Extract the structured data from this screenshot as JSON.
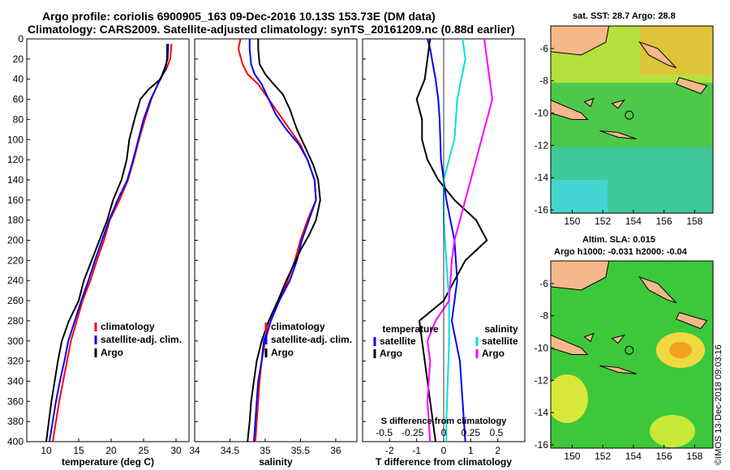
{
  "title_line1": "Argo profile: coriolis 6900905_163 09-Dec-2016 10.13S 153.73E (DM data)",
  "title_line2": "Climatology: CARS2009. Satellite-adjusted climatology: synTS_20161209.nc (0.88d earlier)",
  "map_top_title": "sat. SST: 28.7 Argo: 28.8",
  "map_bottom_title1": "Altim. SLA: 0.015",
  "map_bottom_title2": "Argo h1000: -0.031 h2000: -0.04",
  "stamp": "©IMOS 13-Dec-2018 09:03:16",
  "colors": {
    "clim": "#ff0000",
    "sat": "#0000ff",
    "argo": "#000000",
    "sat_s": "#00e0e0",
    "argo_s": "#ff00ff",
    "land": "#f4b88a"
  },
  "chart_data": [
    {
      "type": "line",
      "name": "temperature",
      "xlabel": "temperature (deg C)",
      "ylabel": "",
      "xlim": [
        7,
        32
      ],
      "ylim": [
        400,
        0
      ],
      "xticks": [
        10,
        15,
        20,
        25,
        30
      ],
      "yticks": [
        0,
        20,
        40,
        60,
        80,
        100,
        120,
        140,
        160,
        180,
        200,
        220,
        240,
        260,
        280,
        300,
        320,
        340,
        360,
        380,
        400
      ],
      "legend": [
        "climatology",
        "satellite-adj. clim.",
        "Argo"
      ],
      "series": [
        {
          "name": "climatology",
          "color": "clim",
          "points": [
            [
              29.3,
              5
            ],
            [
              29.1,
              20
            ],
            [
              28.5,
              30
            ],
            [
              27.5,
              40
            ],
            [
              26.2,
              60
            ],
            [
              25.2,
              80
            ],
            [
              24.3,
              100
            ],
            [
              23.5,
              120
            ],
            [
              22.6,
              140
            ],
            [
              21.3,
              160
            ],
            [
              19.8,
              180
            ],
            [
              18.9,
              200
            ],
            [
              17.8,
              220
            ],
            [
              16.8,
              240
            ],
            [
              15.6,
              260
            ],
            [
              14.7,
              280
            ],
            [
              13.8,
              300
            ],
            [
              13.2,
              320
            ],
            [
              12.6,
              340
            ],
            [
              12.0,
              360
            ],
            [
              11.5,
              380
            ],
            [
              11.0,
              400
            ]
          ]
        },
        {
          "name": "satellite-adj. clim.",
          "color": "sat",
          "points": [
            [
              28.6,
              5
            ],
            [
              28.6,
              20
            ],
            [
              28.4,
              30
            ],
            [
              27.6,
              40
            ],
            [
              26.1,
              60
            ],
            [
              25.0,
              80
            ],
            [
              24.2,
              100
            ],
            [
              23.4,
              120
            ],
            [
              22.5,
              140
            ],
            [
              21.0,
              160
            ],
            [
              19.7,
              180
            ],
            [
              18.6,
              200
            ],
            [
              17.5,
              220
            ],
            [
              16.5,
              240
            ],
            [
              15.4,
              260
            ],
            [
              14.4,
              280
            ],
            [
              13.4,
              300
            ],
            [
              12.8,
              320
            ],
            [
              12.1,
              340
            ],
            [
              11.5,
              360
            ],
            [
              11.0,
              380
            ],
            [
              10.5,
              400
            ]
          ]
        },
        {
          "name": "Argo",
          "color": "argo",
          "points": [
            [
              28.8,
              5
            ],
            [
              28.7,
              20
            ],
            [
              28.2,
              30
            ],
            [
              27.6,
              40
            ],
            [
              25.8,
              50
            ],
            [
              24.5,
              60
            ],
            [
              23.6,
              80
            ],
            [
              22.8,
              100
            ],
            [
              22.4,
              120
            ],
            [
              21.6,
              140
            ],
            [
              20.3,
              160
            ],
            [
              19.4,
              180
            ],
            [
              18.2,
              200
            ],
            [
              17.0,
              220
            ],
            [
              15.8,
              240
            ],
            [
              15.0,
              260
            ],
            [
              13.5,
              280
            ],
            [
              12.4,
              300
            ],
            [
              11.8,
              320
            ],
            [
              11.3,
              340
            ],
            [
              10.8,
              360
            ],
            [
              10.4,
              380
            ],
            [
              10.0,
              400
            ]
          ]
        }
      ]
    },
    {
      "type": "line",
      "name": "salinity",
      "xlabel": "salinity",
      "ylabel": "",
      "xlim": [
        34,
        36.3
      ],
      "ylim": [
        400,
        0
      ],
      "xticks": [
        34,
        34.5,
        35,
        35.5,
        36
      ],
      "legend": [
        "climatology",
        "satellite-adj. clim.",
        "Argo"
      ],
      "series": [
        {
          "name": "climatology",
          "color": "clim",
          "points": [
            [
              34.65,
              0
            ],
            [
              34.62,
              10
            ],
            [
              34.68,
              25
            ],
            [
              34.75,
              35
            ],
            [
              34.9,
              45
            ],
            [
              35.05,
              60
            ],
            [
              35.2,
              75
            ],
            [
              35.35,
              90
            ],
            [
              35.5,
              105
            ],
            [
              35.6,
              120
            ],
            [
              35.7,
              140
            ],
            [
              35.72,
              160
            ],
            [
              35.6,
              180
            ],
            [
              35.5,
              200
            ],
            [
              35.42,
              220
            ],
            [
              35.32,
              240
            ],
            [
              35.2,
              260
            ],
            [
              35.08,
              280
            ],
            [
              35.0,
              300
            ],
            [
              34.95,
              320
            ],
            [
              34.92,
              340
            ],
            [
              34.9,
              360
            ],
            [
              34.88,
              380
            ],
            [
              34.86,
              400
            ]
          ]
        },
        {
          "name": "satellite-adj. clim.",
          "color": "sat",
          "points": [
            [
              34.78,
              0
            ],
            [
              34.78,
              10
            ],
            [
              34.8,
              25
            ],
            [
              34.85,
              35
            ],
            [
              34.95,
              45
            ],
            [
              35.05,
              60
            ],
            [
              35.15,
              75
            ],
            [
              35.3,
              90
            ],
            [
              35.48,
              105
            ],
            [
              35.6,
              120
            ],
            [
              35.7,
              140
            ],
            [
              35.72,
              160
            ],
            [
              35.62,
              180
            ],
            [
              35.52,
              200
            ],
            [
              35.45,
              220
            ],
            [
              35.35,
              240
            ],
            [
              35.2,
              260
            ],
            [
              35.08,
              280
            ],
            [
              34.98,
              300
            ],
            [
              34.95,
              320
            ],
            [
              34.9,
              340
            ],
            [
              34.88,
              360
            ],
            [
              34.86,
              380
            ],
            [
              34.84,
              400
            ]
          ]
        },
        {
          "name": "Argo",
          "color": "argo",
          "points": [
            [
              34.9,
              0
            ],
            [
              34.9,
              10
            ],
            [
              34.92,
              25
            ],
            [
              35.0,
              35
            ],
            [
              35.12,
              45
            ],
            [
              35.25,
              55
            ],
            [
              35.35,
              70
            ],
            [
              35.45,
              90
            ],
            [
              35.55,
              105
            ],
            [
              35.68,
              125
            ],
            [
              35.75,
              140
            ],
            [
              35.78,
              160
            ],
            [
              35.72,
              180
            ],
            [
              35.62,
              195
            ],
            [
              35.5,
              210
            ],
            [
              35.4,
              225
            ],
            [
              35.3,
              240
            ],
            [
              35.18,
              260
            ],
            [
              35.05,
              280
            ],
            [
              34.95,
              300
            ],
            [
              34.88,
              320
            ],
            [
              34.84,
              340
            ],
            [
              34.8,
              360
            ],
            [
              34.78,
              380
            ],
            [
              34.75,
              400
            ]
          ]
        }
      ]
    },
    {
      "type": "line",
      "name": "difference",
      "xlabel": "T difference from climatology",
      "secondary_xlabel": "S difference from climatology",
      "xlim": [
        -3,
        3
      ],
      "ylim": [
        400,
        0
      ],
      "xticks": [
        -2,
        -1,
        0,
        1,
        2
      ],
      "secondary_xticks": [
        {
          "value": -2.2,
          "label": "-0.5"
        },
        {
          "value": -1.15,
          "label": "-0.25"
        },
        {
          "value": 0,
          "label": "0"
        },
        {
          "value": 1.0,
          "label": "0.25"
        },
        {
          "value": 1.95,
          "label": "0.5"
        }
      ],
      "legend_temperature_title": "temperature",
      "legend_salinity_title": "salinity",
      "legend_temperature": [
        "satellite",
        "Argo"
      ],
      "legend_salinity": [
        "satellite",
        "Argo"
      ],
      "series": [
        {
          "name": "T satellite",
          "color": "sat",
          "points": [
            [
              -0.6,
              0
            ],
            [
              -0.5,
              10
            ],
            [
              -0.3,
              40
            ],
            [
              -0.2,
              60
            ],
            [
              -0.15,
              80
            ],
            [
              -0.1,
              120
            ],
            [
              0.1,
              160
            ],
            [
              0.4,
              200
            ],
            [
              0.5,
              240
            ],
            [
              0.3,
              280
            ],
            [
              0.6,
              320
            ],
            [
              0.7,
              360
            ],
            [
              0.8,
              400
            ]
          ]
        },
        {
          "name": "T Argo",
          "color": "argo",
          "points": [
            [
              -0.5,
              0
            ],
            [
              -0.6,
              20
            ],
            [
              -0.7,
              40
            ],
            [
              -1.0,
              60
            ],
            [
              -0.8,
              80
            ],
            [
              -0.8,
              100
            ],
            [
              -0.6,
              120
            ],
            [
              -0.2,
              140
            ],
            [
              0.4,
              160
            ],
            [
              1.2,
              180
            ],
            [
              1.6,
              200
            ],
            [
              0.8,
              220
            ],
            [
              0.4,
              240
            ],
            [
              0.0,
              260
            ],
            [
              -0.9,
              280
            ],
            [
              -0.8,
              300
            ],
            [
              -0.7,
              320
            ],
            [
              -0.6,
              340
            ],
            [
              -0.5,
              360
            ],
            [
              -0.4,
              380
            ],
            [
              -0.3,
              400
            ]
          ]
        },
        {
          "name": "S satellite",
          "color": "sat_s",
          "points": [
            [
              0.7,
              0
            ],
            [
              0.8,
              20
            ],
            [
              0.5,
              60
            ],
            [
              0.4,
              100
            ],
            [
              0.0,
              140
            ],
            [
              0.0,
              180
            ],
            [
              0.1,
              220
            ],
            [
              0.2,
              260
            ],
            [
              0.2,
              300
            ],
            [
              0.15,
              340
            ],
            [
              0.1,
              380
            ],
            [
              0.1,
              400
            ]
          ]
        },
        {
          "name": "S Argo",
          "color": "argo_s",
          "points": [
            [
              1.5,
              0
            ],
            [
              1.6,
              20
            ],
            [
              1.8,
              60
            ],
            [
              1.2,
              120
            ],
            [
              0.6,
              180
            ],
            [
              0.4,
              200
            ],
            [
              0.3,
              220
            ],
            [
              0.2,
              260
            ],
            [
              -0.3,
              280
            ],
            [
              -0.6,
              300
            ],
            [
              -0.5,
              320
            ],
            [
              -0.6,
              360
            ],
            [
              -0.5,
              400
            ]
          ]
        }
      ]
    }
  ],
  "map_axes": {
    "xticks": [
      150,
      152,
      154,
      156,
      158
    ],
    "yticks": [
      -6,
      -8,
      -10,
      -12,
      -14,
      -16
    ]
  }
}
